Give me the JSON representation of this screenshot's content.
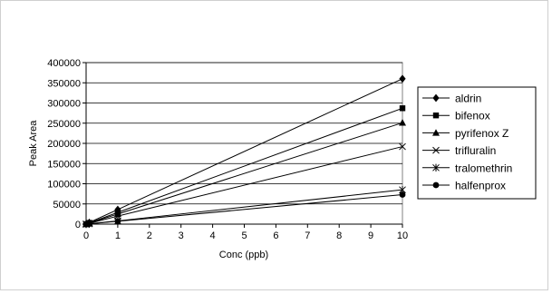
{
  "chart_data": {
    "type": "line",
    "xlabel": "Conc (ppb)",
    "ylabel": "Peak Area",
    "xlim": [
      0,
      10
    ],
    "ylim": [
      0,
      400000
    ],
    "x_ticks": [
      "0",
      "1",
      "2",
      "3",
      "4",
      "5",
      "6",
      "7",
      "8",
      "9",
      "10"
    ],
    "y_ticks": [
      "0",
      "50000",
      "100000",
      "150000",
      "200000",
      "250000",
      "300000",
      "350000",
      "400000"
    ],
    "grid": "horizontal",
    "legend_position": "right",
    "series": [
      {
        "name": "aldrin",
        "marker": "diamond",
        "x": [
          0,
          0.1,
          1,
          10
        ],
        "y": [
          0,
          4000,
          36000,
          360000
        ]
      },
      {
        "name": "bifenox",
        "marker": "square",
        "x": [
          0,
          0.1,
          1,
          10
        ],
        "y": [
          0,
          3000,
          29000,
          287000
        ]
      },
      {
        "name": "pyrifenox Z",
        "marker": "triangle",
        "x": [
          0,
          0.1,
          1,
          10
        ],
        "y": [
          0,
          2500,
          25000,
          251000
        ]
      },
      {
        "name": "trifluralin",
        "marker": "x",
        "x": [
          0,
          0.1,
          1,
          10
        ],
        "y": [
          0,
          2000,
          20000,
          192000
        ]
      },
      {
        "name": "tralomethrin",
        "marker": "asterisk",
        "x": [
          0,
          0.1,
          1,
          10
        ],
        "y": [
          0,
          800,
          8000,
          85000
        ]
      },
      {
        "name": "halfenprox",
        "marker": "circle",
        "x": [
          0,
          0.1,
          1,
          10
        ],
        "y": [
          0,
          700,
          7000,
          73000
        ]
      }
    ]
  }
}
